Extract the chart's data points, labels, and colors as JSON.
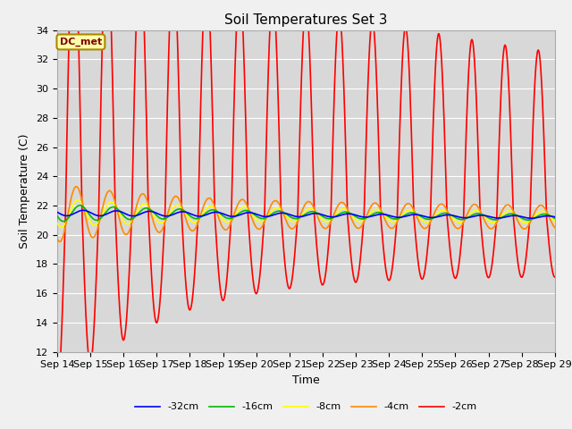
{
  "title": "Soil Temperatures Set 3",
  "xlabel": "Time",
  "ylabel": "Soil Temperature (C)",
  "ylim": [
    12,
    34
  ],
  "annotation": "DC_met",
  "legend": [
    {
      "label": "-32cm",
      "color": "#0000ff"
    },
    {
      "label": "-16cm",
      "color": "#00bb00"
    },
    {
      "label": "-8cm",
      "color": "#ffff00"
    },
    {
      "label": "-4cm",
      "color": "#ff8800"
    },
    {
      "label": "-2cm",
      "color": "#ff0000"
    }
  ],
  "background_color": "#d8d8d8",
  "grid_color": "#ffffff",
  "tick_dates": [
    "Sep 14",
    "Sep 15",
    "Sep 16",
    "Sep 17",
    "Sep 18",
    "Sep 19",
    "Sep 20",
    "Sep 21",
    "Sep 22",
    "Sep 23",
    "Sep 24",
    "Sep 25",
    "Sep 26",
    "Sep 27",
    "Sep 28",
    "Sep 29"
  ],
  "n_days": 15,
  "pts_per_day": 288
}
